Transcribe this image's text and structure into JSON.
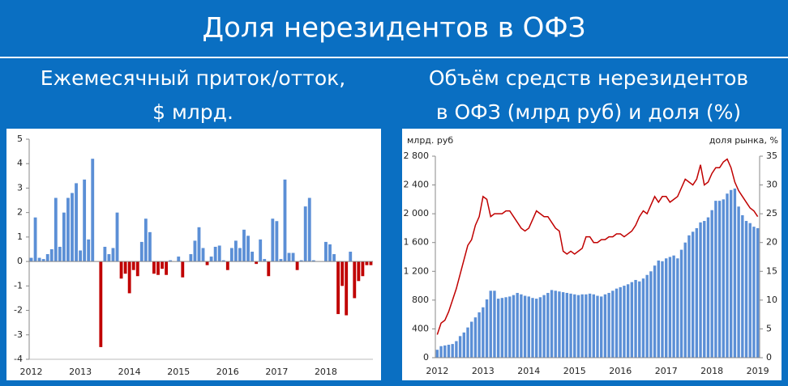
{
  "title": "Доля нерезидентов в ОФЗ",
  "chart_data": [
    {
      "type": "bar",
      "subtitle": [
        "Ежемесячный приток/отток,",
        "$ млрд."
      ],
      "categories": [
        "2012",
        null,
        null,
        null,
        null,
        null,
        null,
        null,
        null,
        null,
        null,
        null,
        "2013",
        null,
        null,
        null,
        null,
        null,
        null,
        null,
        null,
        null,
        null,
        null,
        "2014",
        null,
        null,
        null,
        null,
        null,
        null,
        null,
        null,
        null,
        null,
        null,
        "2015",
        null,
        null,
        null,
        null,
        null,
        null,
        null,
        null,
        null,
        null,
        null,
        "2016",
        null,
        null,
        null,
        null,
        null,
        null,
        null,
        null,
        null,
        null,
        null,
        "2017",
        null,
        null,
        null,
        null,
        null,
        null,
        null,
        null,
        null,
        null,
        null,
        "2018",
        null,
        null,
        null,
        null,
        null,
        null,
        null,
        null,
        null,
        null,
        null
      ],
      "values": [
        0.15,
        1.8,
        0.15,
        0.1,
        0.3,
        0.5,
        2.6,
        0.6,
        2.0,
        2.6,
        2.8,
        3.2,
        0.45,
        3.35,
        0.9,
        4.2,
        0,
        -3.5,
        0.6,
        0.3,
        0.55,
        2.0,
        -0.7,
        -0.5,
        -1.3,
        -0.35,
        -0.6,
        0.8,
        1.75,
        1.2,
        -0.5,
        -0.55,
        -0.3,
        -0.55,
        0.05,
        0,
        0.2,
        -0.65,
        0,
        0.3,
        0.85,
        1.4,
        0.55,
        -0.15,
        0.2,
        0.6,
        0.65,
        0.05,
        -0.35,
        0.55,
        0.85,
        0.55,
        1.3,
        1.05,
        0.4,
        -0.1,
        0.9,
        0.1,
        -0.6,
        1.75,
        1.65,
        0.1,
        3.35,
        0.35,
        0.35,
        -0.35,
        0.05,
        2.25,
        2.6,
        0.05,
        0,
        0,
        0.8,
        0.7,
        0.3,
        -2.15,
        -1.0,
        -2.2,
        0.4,
        -1.5,
        -0.8,
        -0.6,
        -0.15,
        -0.15
      ],
      "color": "#5b8fd6",
      "negative_color": "#c00000",
      "ylim": [
        -4,
        5
      ],
      "yticks": [
        -4,
        -3,
        -2,
        -1,
        0,
        1,
        2,
        3,
        4,
        5
      ]
    },
    {
      "type": "combo",
      "subtitle": [
        "Объём средств нерезидентов",
        "в ОФЗ (млрд руб) и доля (%)"
      ],
      "ylabel": "млрд. руб",
      "y2label": "доля рынка, %",
      "categories": [
        "2012",
        null,
        null,
        null,
        null,
        null,
        null,
        null,
        null,
        null,
        null,
        null,
        "2013",
        null,
        null,
        null,
        null,
        null,
        null,
        null,
        null,
        null,
        null,
        null,
        "2014",
        null,
        null,
        null,
        null,
        null,
        null,
        null,
        null,
        null,
        null,
        null,
        "2015",
        null,
        null,
        null,
        null,
        null,
        null,
        null,
        null,
        null,
        null,
        null,
        "2016",
        null,
        null,
        null,
        null,
        null,
        null,
        null,
        null,
        null,
        null,
        null,
        "2017",
        null,
        null,
        null,
        null,
        null,
        null,
        null,
        null,
        null,
        null,
        null,
        "2018",
        null,
        null,
        null,
        null,
        null,
        null,
        null,
        null,
        null,
        null,
        null,
        "2019"
      ],
      "series": [
        {
          "kind": "bar",
          "color": "#5b8fd6",
          "values": [
            110,
            160,
            170,
            180,
            190,
            230,
            300,
            350,
            420,
            500,
            560,
            630,
            700,
            810,
            930,
            930,
            820,
            830,
            840,
            850,
            870,
            900,
            880,
            860,
            850,
            830,
            820,
            840,
            870,
            900,
            940,
            930,
            920,
            910,
            900,
            890,
            880,
            870,
            880,
            880,
            890,
            880,
            860,
            850,
            880,
            900,
            930,
            960,
            980,
            1000,
            1020,
            1050,
            1080,
            1060,
            1100,
            1150,
            1200,
            1280,
            1350,
            1340,
            1380,
            1400,
            1420,
            1380,
            1500,
            1600,
            1700,
            1750,
            1800,
            1880,
            1900,
            1950,
            2050,
            2180,
            2180,
            2200,
            2280,
            2330,
            2350,
            2100,
            1980,
            1900,
            1870,
            1820,
            1800
          ]
        },
        {
          "kind": "line",
          "color": "#c00000",
          "axis": "y2",
          "values": [
            4,
            6,
            6.5,
            8,
            10,
            12,
            14.5,
            17,
            19.5,
            20.5,
            23,
            24.5,
            28,
            27.5,
            24.5,
            25,
            25,
            25,
            25.5,
            25.5,
            24.5,
            23.5,
            22.5,
            22,
            22.5,
            24,
            25.5,
            25,
            24.5,
            24.5,
            23.5,
            22.5,
            22,
            18.5,
            18,
            18.5,
            18,
            18.5,
            19,
            21,
            21,
            20,
            20,
            20.5,
            20.5,
            21,
            21,
            21.5,
            21.5,
            21,
            21.5,
            22,
            23,
            24.5,
            25.5,
            25,
            26.5,
            28,
            27,
            28,
            28,
            27,
            27.5,
            28,
            29.5,
            31,
            30.5,
            30,
            31,
            33.5,
            30,
            30.5,
            32,
            33,
            33,
            34,
            34.5,
            33,
            30.5,
            29,
            28,
            27,
            26,
            25.5,
            24.5
          ]
        }
      ],
      "ylim": [
        0,
        2800
      ],
      "yticks": [
        0,
        400,
        800,
        {
          "value": 1200,
          "label": "1 200"
        },
        {
          "value": 1600,
          "label": "1 600"
        },
        {
          "value": 2000,
          "label": "2 000"
        },
        {
          "value": 2400,
          "label": "2 400"
        },
        {
          "value": 2800,
          "label": "2 800"
        }
      ],
      "y2lim": [
        0,
        35
      ],
      "y2ticks": [
        0,
        5,
        10,
        15,
        20,
        25,
        30,
        35
      ]
    }
  ]
}
